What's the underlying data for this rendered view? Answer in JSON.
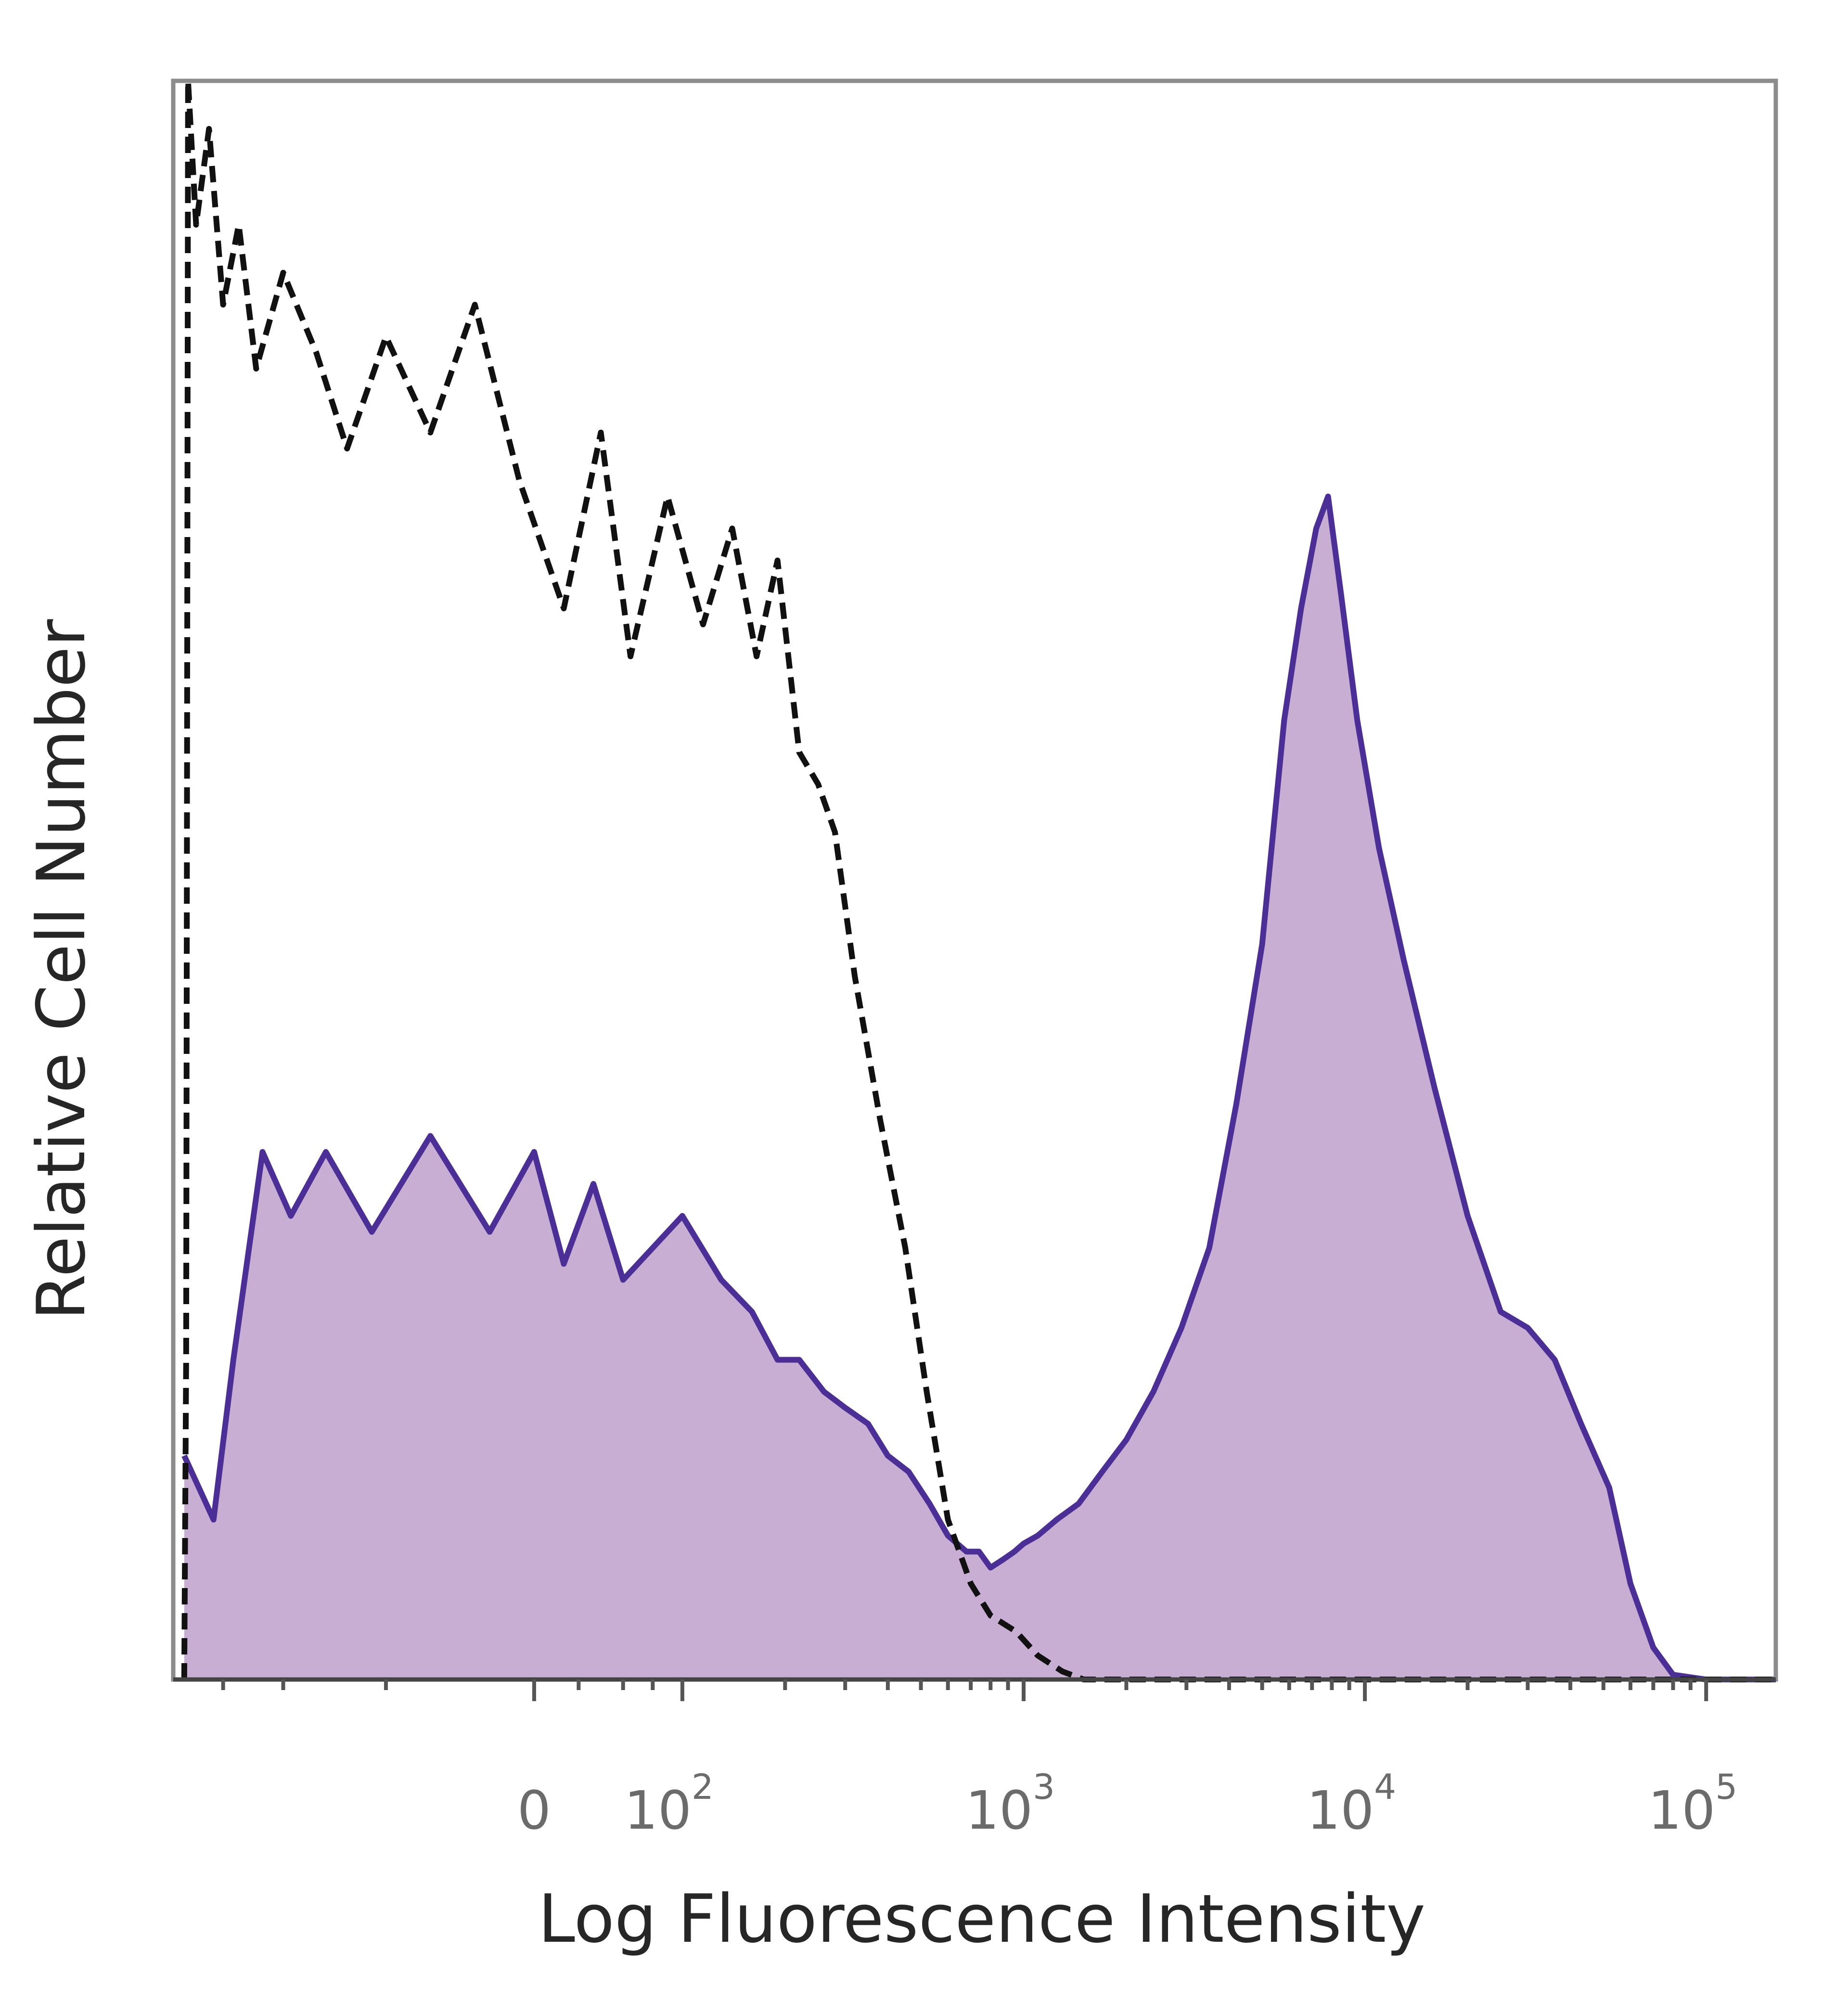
{
  "chart_data": {
    "type": "area",
    "xlabel": "Log Fluorescence Intensity",
    "ylabel": "Relative Cell Number",
    "x_scale": "biexponential",
    "x_ticks": [
      {
        "value": 0,
        "base": "0",
        "exp": ""
      },
      {
        "value": 100,
        "base": "10",
        "exp": "2"
      },
      {
        "value": 1000,
        "base": "10",
        "exp": "3"
      },
      {
        "value": 10000,
        "base": "10",
        "exp": "4"
      },
      {
        "value": 100000,
        "base": "10",
        "exp": "5"
      }
    ],
    "ylim": [
      0,
      100
    ],
    "grid": false,
    "legend": "none",
    "series": [
      {
        "style": "filled",
        "color": "#4b2f96",
        "fill": "#c9aed4",
        "x": [
          -390,
          -320,
          -280,
          -230,
          -190,
          -150,
          -110,
          -70,
          -30,
          0,
          20,
          40,
          60,
          80,
          100,
          130,
          160,
          190,
          220,
          260,
          300,
          350,
          400,
          460,
          530,
          600,
          680,
          740,
          800,
          870,
          940,
          1000,
          1100,
          1250,
          1450,
          1700,
          2000,
          2400,
          2900,
          3500,
          4200,
          5000,
          5800,
          6500,
          7200,
          7800,
          8500,
          9500,
          11000,
          13000,
          16000,
          20000,
          25000,
          30000,
          36000,
          43000,
          52000,
          60000,
          70000,
          80000,
          100000,
          160000
        ],
        "y": [
          14,
          10,
          20,
          33,
          29,
          33,
          28,
          34,
          28,
          33,
          26,
          31,
          25,
          27,
          29,
          25,
          23,
          20,
          20,
          18,
          17,
          16,
          14,
          13,
          11,
          9,
          8,
          8,
          7,
          7.5,
          8,
          8.5,
          9,
          10,
          11,
          13,
          15,
          18,
          22,
          27,
          36,
          46,
          60,
          67,
          72,
          74,
          68,
          60,
          52,
          45,
          37,
          29,
          23,
          22,
          20,
          16,
          12,
          6,
          2,
          0.3,
          0,
          0
        ]
      },
      {
        "style": "dashed",
        "color": "#111111",
        "x": [
          -390,
          -385,
          -380,
          -360,
          -330,
          -300,
          -270,
          -240,
          -200,
          -160,
          -130,
          -100,
          -70,
          -40,
          -10,
          20,
          45,
          65,
          90,
          115,
          140,
          165,
          190,
          220,
          250,
          280,
          320,
          380,
          450,
          520,
          600,
          700,
          800,
          950,
          1100,
          1300,
          1500,
          2000,
          3000,
          5000,
          10000,
          20000,
          50000,
          160000
        ],
        "y": [
          0,
          20,
          100,
          91,
          97,
          86,
          91,
          82,
          88,
          83,
          77,
          84,
          78,
          86,
          75,
          67,
          78,
          64,
          74,
          66,
          72,
          64,
          70,
          58,
          56,
          53,
          44,
          35,
          27,
          18,
          10,
          6,
          4,
          3,
          1.5,
          0.5,
          0,
          0,
          0,
          0,
          0,
          0,
          0,
          0
        ]
      }
    ]
  }
}
